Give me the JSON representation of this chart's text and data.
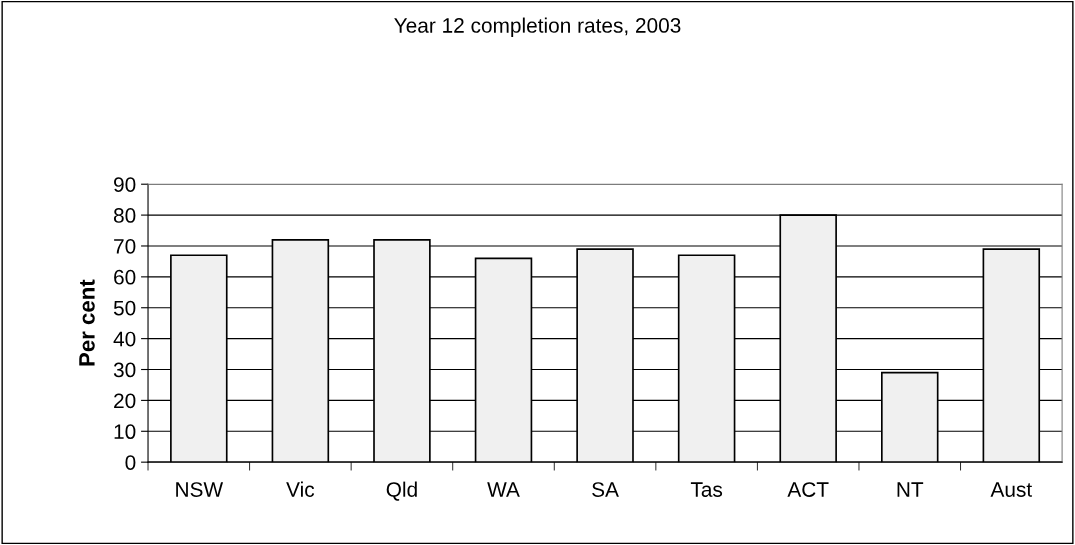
{
  "chart_data": {
    "type": "bar",
    "title": "Year 12 completion rates, 2003",
    "ylabel": "Per cent",
    "categories": [
      "NSW",
      "Vic",
      "Qld",
      "WA",
      "SA",
      "Tas",
      "ACT",
      "NT",
      "Aust"
    ],
    "values": [
      67,
      72,
      72,
      66,
      69,
      67,
      80,
      29,
      69
    ],
    "color": "#f0f0f0",
    "ylim": [
      0,
      90
    ],
    "yticks": [
      0,
      10,
      20,
      30,
      40,
      50,
      60,
      70,
      80,
      90
    ],
    "grid": "y",
    "legend": false
  }
}
